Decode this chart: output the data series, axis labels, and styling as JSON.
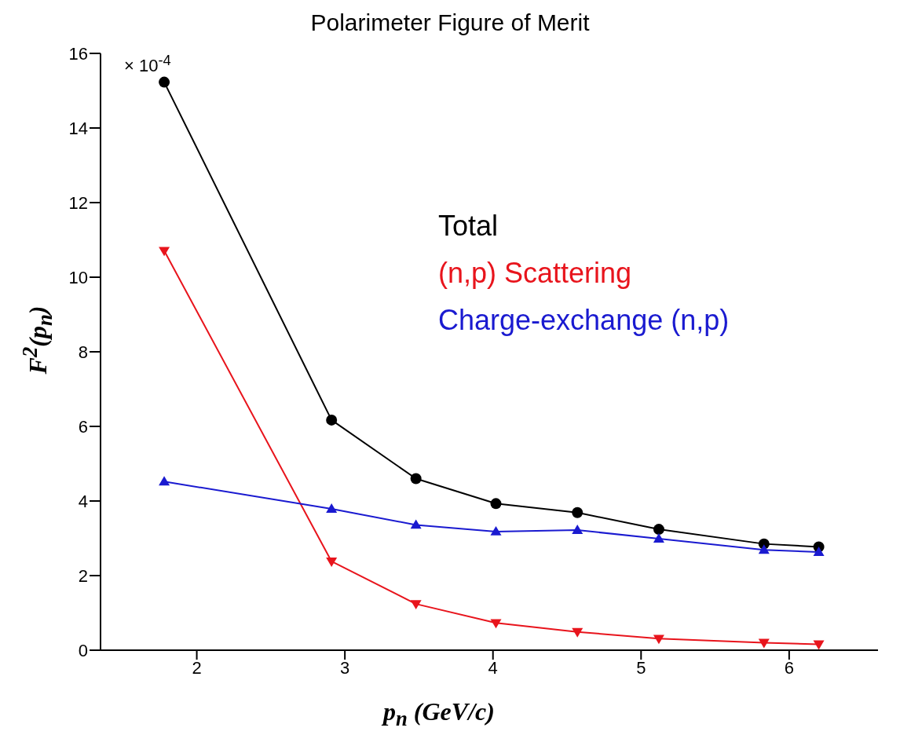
{
  "chart_data": {
    "type": "line",
    "title": "Polarimeter Figure of Merit",
    "xlabel": "p$_{n}$ (GeV/c)",
    "ylabel": "F$^{2}$(p$_{n}$)",
    "annotations": [
      "× 10$^{-4}$"
    ],
    "x": [
      1.78,
      2.91,
      3.48,
      4.02,
      4.57,
      5.12,
      5.83,
      6.2
    ],
    "series": [
      {
        "name": "Total",
        "color": "#000000",
        "marker": "circle",
        "values": [
          15.23,
          6.17,
          4.6,
          3.93,
          3.69,
          3.24,
          2.85,
          2.77
        ]
      },
      {
        "name": "(n,p) Scattering",
        "color": "#e8141c",
        "marker": "triangle_down",
        "values": [
          10.71,
          2.38,
          1.24,
          0.73,
          0.49,
          0.31,
          0.2,
          0.16
        ]
      },
      {
        "name": "Charge-exchange (n,p)",
        "color": "#1a1ad0",
        "marker": "triangle",
        "values": [
          4.52,
          3.79,
          3.36,
          3.18,
          3.22,
          2.99,
          2.69,
          2.63
        ]
      }
    ],
    "xlim": [
      1.35,
      6.6
    ],
    "xticks": [
      2,
      3,
      4,
      5,
      6
    ],
    "ylim": [
      0,
      16
    ],
    "yticks": [
      0,
      2,
      4,
      6,
      8,
      10,
      12,
      14,
      16
    ],
    "grid": false,
    "legend": "top right"
  }
}
